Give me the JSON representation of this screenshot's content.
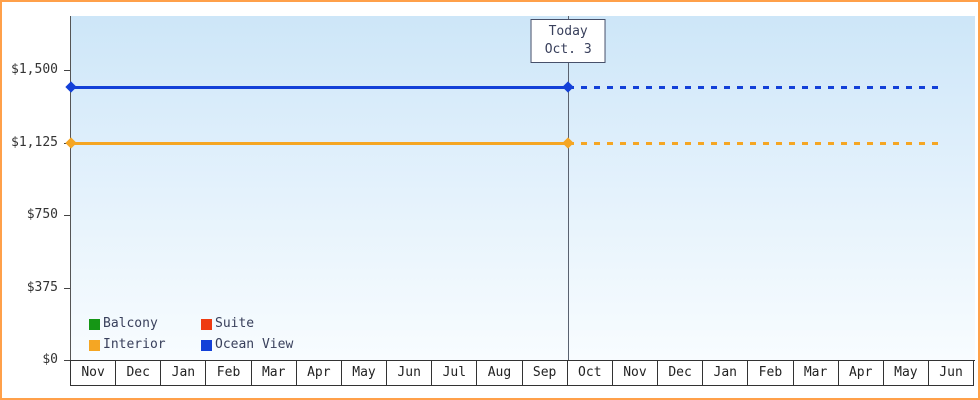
{
  "chart_data": {
    "type": "line",
    "title": "",
    "xlabel": "",
    "ylabel": "",
    "grid": false,
    "legend_position": "bottom-left",
    "ylim": [
      0,
      1500
    ],
    "y_ticks": [
      {
        "label": "$0",
        "value": 0
      },
      {
        "label": "$375",
        "value": 375
      },
      {
        "label": "$750",
        "value": 750
      },
      {
        "label": "$1,125",
        "value": 1125
      },
      {
        "label": "$1,500",
        "value": 1500
      }
    ],
    "x_categories": [
      "Nov",
      "Dec",
      "Jan",
      "Feb",
      "Mar",
      "Apr",
      "May",
      "Jun",
      "Jul",
      "Aug",
      "Sep",
      "Oct",
      "Nov",
      "Dec",
      "Jan",
      "Feb",
      "Mar",
      "Apr",
      "May",
      "Jun"
    ],
    "series": [
      {
        "name": "Balcony",
        "color": "#159615",
        "value": null
      },
      {
        "name": "Suite",
        "color": "#ee3b11",
        "value": null
      },
      {
        "name": "Interior",
        "color": "#f5a623",
        "value": 1125,
        "style": "solid-then-dotted"
      },
      {
        "name": "Ocean View",
        "color": "#1340d8",
        "value": 1410,
        "style": "solid-then-dotted"
      }
    ],
    "today_marker": {
      "line1": "Today",
      "line2": "Oct. 3",
      "position_between": "Sep and Oct"
    }
  },
  "colors": {
    "frame_border": "#ffa04a",
    "axis": "#444444",
    "today_line": "#5a6270",
    "plot_gradient_top": "#cde6f8",
    "plot_gradient_bottom": "#f8fcff",
    "month_cell_border": "#333333"
  }
}
